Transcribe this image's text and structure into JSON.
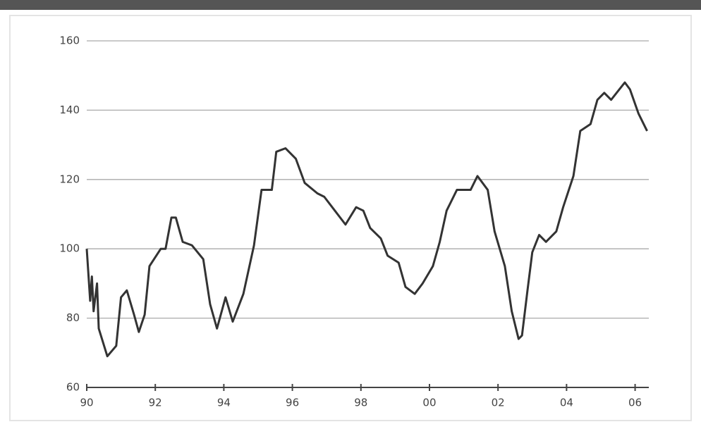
{
  "chart_data": {
    "type": "line",
    "x": [
      1990.0,
      1990.1,
      1990.15,
      1990.2,
      1990.3,
      1990.35,
      1990.6,
      1990.86,
      1991.0,
      1991.17,
      1991.38,
      1991.52,
      1991.69,
      1991.83,
      1992.16,
      1992.3,
      1992.47,
      1992.6,
      1992.8,
      1993.07,
      1993.4,
      1993.6,
      1993.8,
      1994.05,
      1994.26,
      1994.57,
      1994.88,
      1995.1,
      1995.4,
      1995.53,
      1995.8,
      1996.1,
      1996.36,
      1996.73,
      1996.93,
      1997.24,
      1997.55,
      1997.86,
      1998.07,
      1998.27,
      1998.58,
      1998.78,
      1999.1,
      1999.3,
      1999.57,
      1999.8,
      2000.1,
      2000.3,
      2000.5,
      2000.8,
      2001.2,
      2001.4,
      2001.7,
      2001.9,
      2002.2,
      2002.4,
      2002.6,
      2002.7,
      2002.86,
      2003.0,
      2003.2,
      2003.4,
      2003.7,
      2003.9,
      2004.2,
      2004.4,
      2004.7,
      2004.9,
      2005.1,
      2005.3,
      2005.7,
      2005.85,
      2006.1,
      2006.35
    ],
    "series": [
      {
        "color": "#333333",
        "values": [
          100,
          85,
          92,
          82,
          90,
          77,
          69,
          72,
          86,
          88,
          81,
          76,
          81,
          95,
          100,
          100,
          109,
          109,
          102,
          101,
          97,
          84,
          77,
          86,
          79,
          87,
          101,
          117,
          117,
          128,
          129,
          126,
          119,
          116,
          115,
          111,
          107,
          112,
          111,
          106,
          103,
          98,
          96,
          89,
          87,
          90,
          95,
          102,
          111,
          117,
          117,
          121,
          117,
          105,
          95,
          82,
          74,
          75,
          88,
          99,
          104,
          102,
          105,
          112,
          121,
          134,
          136,
          143,
          145,
          143,
          148,
          146,
          139,
          134
        ]
      }
    ],
    "xlim": [
      1990,
      2006.4
    ],
    "xticks": [
      {
        "value": 1990,
        "label": "90"
      },
      {
        "value": 1992,
        "label": "92"
      },
      {
        "value": 1994,
        "label": "94"
      },
      {
        "value": 1996,
        "label": "96"
      },
      {
        "value": 1998,
        "label": "98"
      },
      {
        "value": 2000,
        "label": "00"
      },
      {
        "value": 2002,
        "label": "02"
      },
      {
        "value": 2004,
        "label": "04"
      },
      {
        "value": 2006,
        "label": "06"
      }
    ],
    "ylim": [
      60,
      160
    ],
    "yticks": [
      60,
      80,
      100,
      120,
      140,
      160
    ],
    "grid": true
  }
}
